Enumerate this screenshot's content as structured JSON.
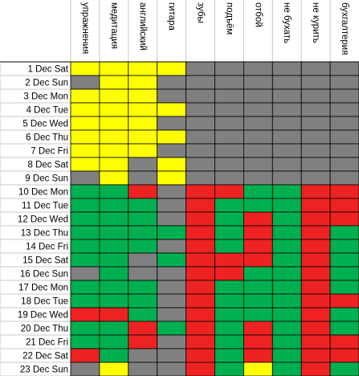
{
  "table": {
    "columns": [
      "упражнения",
      "медитация",
      "английский",
      "гитара",
      "зубы",
      "подъём",
      "отбой",
      "не бухать",
      "не курить",
      "бухгалтерия"
    ],
    "rows": [
      {
        "label": "1 Dec Sat",
        "cells": [
          "#ffff00",
          "#ffff00",
          "#ffff00",
          "#ffff00",
          "#808080",
          "#808080",
          "#808080",
          "#808080",
          "#808080",
          "#808080"
        ]
      },
      {
        "label": "2 Dec Sun",
        "cells": [
          "#808080",
          "#ffff00",
          "#ffff00",
          "#808080",
          "#808080",
          "#808080",
          "#808080",
          "#808080",
          "#808080",
          "#808080"
        ]
      },
      {
        "label": "3 Dec Mon",
        "cells": [
          "#ffff00",
          "#ffff00",
          "#ffff00",
          "#808080",
          "#808080",
          "#808080",
          "#808080",
          "#808080",
          "#808080",
          "#808080"
        ]
      },
      {
        "label": "4 Dec Tue",
        "cells": [
          "#ffff00",
          "#ffff00",
          "#ffff00",
          "#ffff00",
          "#808080",
          "#808080",
          "#808080",
          "#808080",
          "#808080",
          "#808080"
        ]
      },
      {
        "label": "5 Dec Wed",
        "cells": [
          "#ffff00",
          "#ffff00",
          "#ffff00",
          "#808080",
          "#808080",
          "#808080",
          "#808080",
          "#808080",
          "#808080",
          "#808080"
        ]
      },
      {
        "label": "6 Dec Thu",
        "cells": [
          "#ffff00",
          "#ffff00",
          "#ffff00",
          "#ffff00",
          "#808080",
          "#808080",
          "#808080",
          "#808080",
          "#808080",
          "#808080"
        ]
      },
      {
        "label": "7 Dec Fri",
        "cells": [
          "#ffff00",
          "#ffff00",
          "#ffff00",
          "#808080",
          "#808080",
          "#808080",
          "#808080",
          "#808080",
          "#808080",
          "#808080"
        ]
      },
      {
        "label": "8 Dec Sat",
        "cells": [
          "#ffff00",
          "#ffff00",
          "#808080",
          "#ffff00",
          "#808080",
          "#808080",
          "#808080",
          "#808080",
          "#808080",
          "#808080"
        ]
      },
      {
        "label": "9 Dec Sun",
        "cells": [
          "#808080",
          "#ffff00",
          "#808080",
          "#ffff00",
          "#808080",
          "#808080",
          "#808080",
          "#808080",
          "#808080",
          "#808080"
        ]
      },
      {
        "label": "10 Dec Mon",
        "cells": [
          "#00b050",
          "#00b050",
          "#ee2222",
          "#808080",
          "#ee2222",
          "#ee2222",
          "#00b050",
          "#00b050",
          "#ee2222",
          "#ee2222"
        ]
      },
      {
        "label": "11 Dec Tue",
        "cells": [
          "#00b050",
          "#00b050",
          "#00b050",
          "#808080",
          "#ee2222",
          "#00b050",
          "#00b050",
          "#00b050",
          "#ee2222",
          "#ee2222"
        ]
      },
      {
        "label": "12 Dec Wed",
        "cells": [
          "#00b050",
          "#00b050",
          "#00b050",
          "#808080",
          "#ee2222",
          "#00b050",
          "#ee2222",
          "#00b050",
          "#ee2222",
          "#ee2222"
        ]
      },
      {
        "label": "13 Dec Thu",
        "cells": [
          "#00b050",
          "#00b050",
          "#00b050",
          "#00b050",
          "#ee2222",
          "#00b050",
          "#ee2222",
          "#00b050",
          "#ee2222",
          "#00b050"
        ]
      },
      {
        "label": "14 Dec Fri",
        "cells": [
          "#00b050",
          "#00b050",
          "#00b050",
          "#808080",
          "#ee2222",
          "#00b050",
          "#ee2222",
          "#00b050",
          "#ee2222",
          "#00b050"
        ]
      },
      {
        "label": "15 Dec Sat",
        "cells": [
          "#00b050",
          "#00b050",
          "#808080",
          "#00b050",
          "#ee2222",
          "#ee2222",
          "#ee2222",
          "#00b050",
          "#ee2222",
          "#00b050"
        ]
      },
      {
        "label": "16 Dec Sun",
        "cells": [
          "#808080",
          "#00b050",
          "#808080",
          "#808080",
          "#ee2222",
          "#ee2222",
          "#00b050",
          "#00b050",
          "#ee2222",
          "#00b050"
        ]
      },
      {
        "label": "17 Dec Mon",
        "cells": [
          "#00b050",
          "#00b050",
          "#00b050",
          "#808080",
          "#ee2222",
          "#00b050",
          "#00b050",
          "#00b050",
          "#ee2222",
          "#00b050"
        ]
      },
      {
        "label": "18 Dec Tue",
        "cells": [
          "#00b050",
          "#00b050",
          "#00b050",
          "#808080",
          "#ee2222",
          "#00b050",
          "#00b050",
          "#00b050",
          "#ee2222",
          "#ee2222"
        ]
      },
      {
        "label": "19 Dec Wed",
        "cells": [
          "#ee2222",
          "#ee2222",
          "#00b050",
          "#808080",
          "#ee2222",
          "#00b050",
          "#00b050",
          "#00b050",
          "#ee2222",
          "#00b050"
        ]
      },
      {
        "label": "20 Dec Thu",
        "cells": [
          "#00b050",
          "#00b050",
          "#ee2222",
          "#00b050",
          "#ee2222",
          "#00b050",
          "#ee2222",
          "#00b050",
          "#ee2222",
          "#00b050"
        ]
      },
      {
        "label": "21 Dec Fri",
        "cells": [
          "#00b050",
          "#00b050",
          "#ee2222",
          "#808080",
          "#ee2222",
          "#00b050",
          "#ee2222",
          "#00b050",
          "#ee2222",
          "#ee2222"
        ]
      },
      {
        "label": "22 Dec Sat",
        "cells": [
          "#ee2222",
          "#00b050",
          "#808080",
          "#808080",
          "#ee2222",
          "#00b050",
          "#ee2222",
          "#00b050",
          "#ee2222",
          "#ee2222"
        ]
      },
      {
        "label": "23 Dec Sun",
        "cells": [
          "#808080",
          "#ffff00",
          "#808080",
          "#808080",
          "#ee2222",
          "#00b050",
          "#ffff00",
          "#00b050",
          "#ee2222",
          "#00b050"
        ]
      }
    ]
  }
}
